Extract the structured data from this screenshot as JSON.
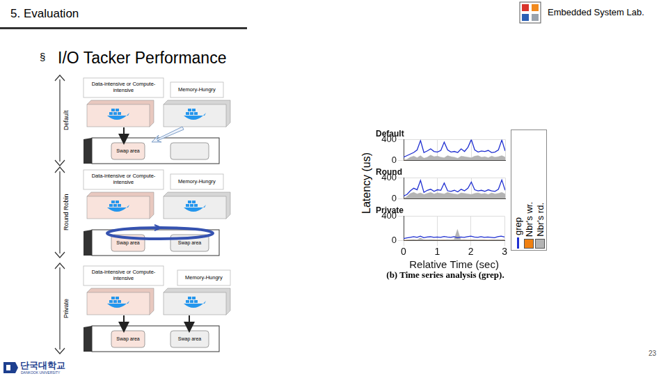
{
  "slide": {
    "section": "5. Evaluation",
    "lab": "Embedded System Lab.",
    "bullet": "§",
    "heading": "I/O Tacker Performance",
    "page": "23",
    "university": {
      "korean": "단국대학교",
      "english": "DANKOOK UNIVERSITY"
    },
    "diagram": {
      "panels": [
        {
          "label": "Default",
          "workload": "Data-intensive or Compute-intensive",
          "neighbor": "Memory-Hungry",
          "swap_areas": [
            "Swap area"
          ]
        },
        {
          "label": "Round Robin",
          "workload": "Data-intensive or Compute-intensive",
          "neighbor": "Memory-Hungry",
          "swap_areas": [
            "Swap area",
            "Swap area"
          ]
        },
        {
          "label": "Private",
          "workload": "Data-intensive or Compute-intensive",
          "neighbor": "Memory-Hungry",
          "swap_areas": [
            "Swap area",
            "Swap area"
          ]
        }
      ]
    },
    "figure_caption": "(b) Time series analysis (grep)."
  },
  "chart_data": [
    {
      "type": "line",
      "title": "Default",
      "x": [
        0,
        0.1,
        0.2,
        0.3,
        0.4,
        0.5,
        0.6,
        0.7,
        0.8,
        0.9,
        1,
        1.1,
        1.2,
        1.3,
        1.4,
        1.5,
        1.6,
        1.7,
        1.8,
        1.9,
        2,
        2.1,
        2.2,
        2.3,
        2.4,
        2.5,
        2.6,
        2.7,
        2.8,
        2.9,
        3
      ],
      "xlim": [
        0,
        3
      ],
      "xticks": [
        0,
        1,
        2,
        3
      ],
      "ylim": [
        0,
        400
      ],
      "yticks": [
        0,
        400
      ],
      "grid": true,
      "tick_labels": "y",
      "series": [
        {
          "name": "Nbr's rd.",
          "type": "area",
          "color": "#b4b4b4",
          "values": [
            0,
            20,
            60,
            80,
            50,
            90,
            40,
            60,
            100,
            70,
            80,
            60,
            50,
            90,
            70,
            60,
            40,
            80,
            70,
            60,
            50,
            80,
            90,
            60,
            70,
            50,
            80,
            60,
            70,
            90,
            60
          ]
        },
        {
          "name": "Nbr's wr.",
          "type": "area",
          "color": "#f08010",
          "values": [
            0,
            10,
            20,
            30,
            10,
            20,
            40,
            10,
            20,
            30,
            10,
            20,
            30,
            10,
            20,
            40,
            20,
            10,
            30,
            20,
            10,
            20,
            30,
            10,
            20,
            30,
            20,
            10,
            30,
            20,
            10
          ]
        },
        {
          "name": "grep",
          "type": "line",
          "color": "#1f2fd1",
          "values": [
            60,
            90,
            120,
            150,
            200,
            380,
            150,
            180,
            220,
            170,
            160,
            190,
            350,
            200,
            160,
            170,
            150,
            220,
            170,
            250,
            400,
            200,
            160,
            180,
            170,
            190,
            150,
            160,
            200,
            390,
            180
          ]
        }
      ]
    },
    {
      "type": "line",
      "title": "Round",
      "ylabel": "Latency (us)",
      "x": [
        0,
        0.1,
        0.2,
        0.3,
        0.4,
        0.5,
        0.6,
        0.7,
        0.8,
        0.9,
        1,
        1.1,
        1.2,
        1.3,
        1.4,
        1.5,
        1.6,
        1.7,
        1.8,
        1.9,
        2,
        2.1,
        2.2,
        2.3,
        2.4,
        2.5,
        2.6,
        2.7,
        2.8,
        2.9,
        3
      ],
      "xlim": [
        0,
        3
      ],
      "xticks": [
        0,
        1,
        2,
        3
      ],
      "ylim": [
        0,
        400
      ],
      "yticks": [
        0,
        400
      ],
      "grid": true,
      "tick_labels": "y",
      "series": [
        {
          "name": "Nbr's rd.",
          "type": "area",
          "color": "#b4b4b4",
          "values": [
            0,
            40,
            100,
            120,
            90,
            110,
            80,
            100,
            120,
            90,
            110,
            100,
            90,
            120,
            100,
            90,
            80,
            110,
            100,
            90,
            80,
            100,
            110,
            90,
            100,
            80,
            110,
            90,
            100,
            120,
            90
          ]
        },
        {
          "name": "Nbr's wr.",
          "type": "area",
          "color": "#f08010",
          "values": [
            0,
            10,
            15,
            25,
            10,
            20,
            30,
            10,
            15,
            25,
            10,
            20,
            25,
            10,
            15,
            30,
            20,
            10,
            25,
            15,
            10,
            20,
            25,
            10,
            15,
            25,
            20,
            10,
            25,
            15,
            10
          ]
        },
        {
          "name": "grep",
          "type": "line",
          "color": "#1f2fd1",
          "values": [
            50,
            80,
            150,
            200,
            170,
            350,
            120,
            160,
            180,
            140,
            170,
            160,
            300,
            150,
            140,
            160,
            130,
            180,
            150,
            200,
            320,
            170,
            150,
            160,
            140,
            170,
            150,
            140,
            180,
            360,
            160
          ]
        }
      ]
    },
    {
      "type": "line",
      "title": "Private",
      "xlabel": "Relative Time (sec)",
      "x": [
        0,
        0.1,
        0.2,
        0.3,
        0.4,
        0.5,
        0.6,
        0.7,
        0.8,
        0.9,
        1,
        1.1,
        1.2,
        1.3,
        1.4,
        1.5,
        1.6,
        1.7,
        1.8,
        1.9,
        2,
        2.1,
        2.2,
        2.3,
        2.4,
        2.5,
        2.6,
        2.7,
        2.8,
        2.9,
        3
      ],
      "xlim": [
        0,
        3
      ],
      "xticks": [
        0,
        1,
        2,
        3
      ],
      "ylim": [
        0,
        400
      ],
      "yticks": [
        0,
        400
      ],
      "grid": true,
      "series": [
        {
          "name": "Nbr's rd.",
          "type": "area",
          "color": "#b4b4b4",
          "values": [
            0,
            5,
            10,
            15,
            8,
            40,
            10,
            12,
            15,
            10,
            12,
            10,
            8,
            15,
            10,
            12,
            180,
            10,
            12,
            10,
            8,
            15,
            10,
            12,
            10,
            8,
            12,
            10,
            15,
            10,
            12
          ]
        },
        {
          "name": "Nbr's wr.",
          "type": "area",
          "color": "#f08010",
          "values": [
            0,
            5,
            8,
            10,
            5,
            8,
            10,
            5,
            8,
            10,
            5,
            8,
            10,
            5,
            8,
            10,
            5,
            8,
            10,
            5,
            8,
            10,
            5,
            8,
            10,
            5,
            8,
            10,
            5,
            8,
            10
          ]
        },
        {
          "name": "grep",
          "type": "line",
          "color": "#1f2fd1",
          "values": [
            30,
            40,
            50,
            60,
            50,
            70,
            45,
            55,
            60,
            50,
            55,
            50,
            65,
            55,
            50,
            60,
            45,
            55,
            50,
            60,
            70,
            55,
            50,
            60,
            50,
            55,
            50,
            45,
            60,
            70,
            55
          ]
        }
      ]
    }
  ]
}
